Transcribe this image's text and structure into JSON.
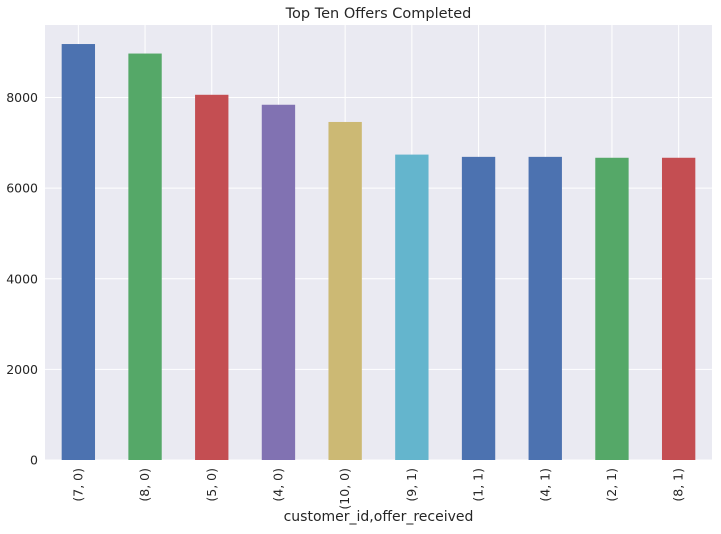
{
  "chart_data": {
    "type": "bar",
    "title": "Top Ten Offers Completed",
    "xlabel": "customer_id,offer_received",
    "ylabel": "",
    "categories": [
      "(7, 0)",
      "(8, 0)",
      "(5, 0)",
      "(4, 0)",
      "(10, 0)",
      "(9, 1)",
      "(1, 1)",
      "(4, 1)",
      "(2, 1)",
      "(8, 1)"
    ],
    "values": [
      9180,
      8970,
      8060,
      7840,
      7460,
      6740,
      6690,
      6690,
      6670,
      6670
    ],
    "colors": [
      "#4c72b0",
      "#55a868",
      "#c44e52",
      "#8172b2",
      "#ccb974",
      "#64b5cd",
      "#4c72b0",
      "#4c72b0",
      "#55a868",
      "#c44e52"
    ],
    "ylim": [
      0,
      9600
    ],
    "yticks": [
      0,
      2000,
      4000,
      6000,
      8000
    ],
    "grid": true,
    "legend": "none",
    "background": "#eaeaf2",
    "grid_color": "#ffffff"
  }
}
